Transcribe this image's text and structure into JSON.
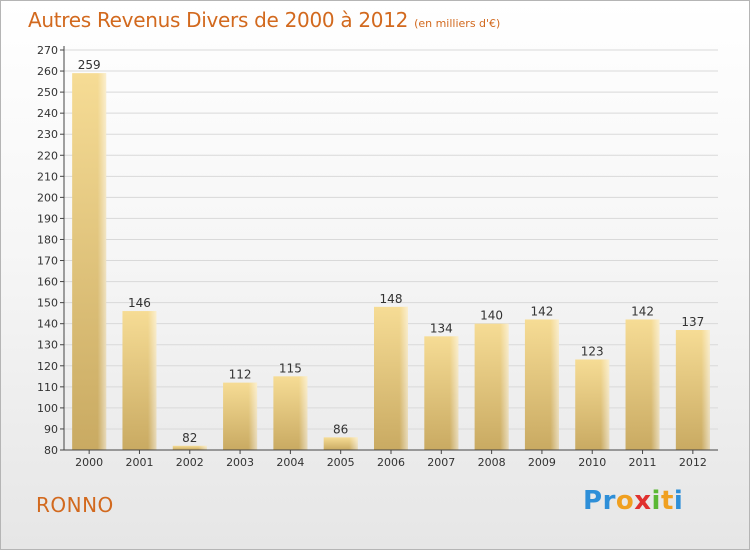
{
  "title": "Autres Revenus Divers de 2000 à 2012",
  "unit_note": "(en milliers d'€)",
  "place": "RONNO",
  "logo": {
    "text": "Proxiti",
    "letter_colors": [
      "#2e8fd8",
      "#2e8fd8",
      "#f0a020",
      "#e0312f",
      "#5bb834",
      "#f0a020",
      "#2e8fd8"
    ]
  },
  "colors": {
    "title": "#d2691e",
    "bar_light": "#f6dc95",
    "bar_dark": "#c9aa62",
    "grid": "#d9d9d9",
    "axis": "#444444"
  },
  "chart_data": {
    "type": "bar",
    "categories": [
      "2000",
      "2001",
      "2002",
      "2003",
      "2004",
      "2005",
      "2006",
      "2007",
      "2008",
      "2009",
      "2010",
      "2011",
      "2012"
    ],
    "values": [
      259,
      146,
      82,
      112,
      115,
      86,
      148,
      134,
      140,
      142,
      123,
      142,
      137
    ],
    "ylim": [
      80,
      270
    ],
    "yticks": [
      80,
      90,
      100,
      110,
      120,
      130,
      140,
      150,
      160,
      170,
      180,
      190,
      200,
      210,
      220,
      230,
      240,
      250,
      260,
      270
    ],
    "grid": true,
    "data_labels": true
  }
}
